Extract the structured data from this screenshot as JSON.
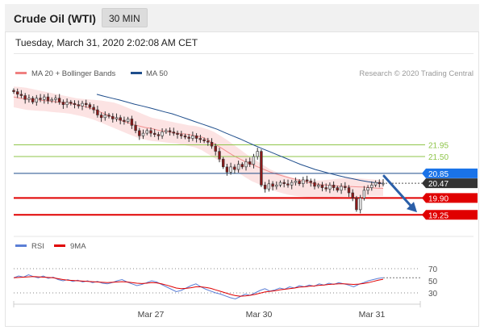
{
  "header": {
    "title": "Crude Oil (WTI)",
    "timeframe": "30 MIN",
    "timestamp": "Tuesday, March 31, 2020 2:02:08 AM CET"
  },
  "colors": {
    "bollinger": "#f08080",
    "ma50": "#1f4e8c",
    "resistance_line": "#8fc54a",
    "support_line": "#e00000",
    "pivot_line": "#1f4e8c",
    "candle_up": "#e8e8e8",
    "candle_down": "#8b1a1a",
    "rsi": "#5b7fd6",
    "rsi_ma": "#e00000",
    "current_price_bg": "#333333",
    "pivot_bg": "#1a73e8",
    "support_bg": "#e00000",
    "arrow": "#2b5fa8"
  },
  "chart_data": [
    {
      "type": "candlestick",
      "instrument": "Crude Oil (WTI)",
      "interval": "30 MIN",
      "legend": [
        {
          "name": "MA 20 + Bollinger Bands",
          "color": "#f08080"
        },
        {
          "name": "MA 50",
          "color": "#1f4e8c"
        }
      ],
      "legend_placement": "top-left",
      "credit": "Research © 2020 Trading Central",
      "x_ticks": [
        "Mar 27",
        "Mar 30",
        "Mar 31"
      ],
      "ylim": [
        18.7,
        24.3
      ],
      "close": [
        24.0,
        23.9,
        23.85,
        23.7,
        23.75,
        23.6,
        23.75,
        23.7,
        23.8,
        23.65,
        23.7,
        23.75,
        23.6,
        23.5,
        23.6,
        23.55,
        23.5,
        23.45,
        23.55,
        23.5,
        23.4,
        23.3,
        23.1,
        23.0,
        23.1,
        23.05,
        22.95,
        23.0,
        22.9,
        22.85,
        22.95,
        22.7,
        22.5,
        22.3,
        22.4,
        22.5,
        22.4,
        22.35,
        22.3,
        22.45,
        22.5,
        22.45,
        22.4,
        22.35,
        22.3,
        22.25,
        22.2,
        22.3,
        22.2,
        22.15,
        22.1,
        22.05,
        21.9,
        21.7,
        21.4,
        21.1,
        20.9,
        21.1,
        21.0,
        21.2,
        21.1,
        21.3,
        21.2,
        21.5,
        21.7,
        20.4,
        20.25,
        20.45,
        20.35,
        20.4,
        20.5,
        20.45,
        20.4,
        20.5,
        20.55,
        20.45,
        20.6,
        20.55,
        20.5,
        20.35,
        20.4,
        20.3,
        20.25,
        20.4,
        20.3,
        20.2,
        20.35,
        20.3,
        20.1,
        19.9,
        19.45,
        19.9,
        20.2,
        20.3,
        20.4,
        20.5,
        20.45,
        20.47
      ],
      "ma20": [
        23.8,
        23.75,
        23.72,
        23.7,
        23.68,
        23.65,
        23.63,
        23.6,
        23.58,
        23.55,
        23.5,
        23.45,
        23.38,
        23.3,
        23.2,
        23.1,
        23.0,
        22.9,
        22.82,
        22.75,
        22.68,
        22.62,
        22.58,
        22.52,
        22.48,
        22.44,
        22.4,
        22.38,
        22.35,
        22.3,
        22.25,
        22.15,
        22.0,
        21.85,
        21.7,
        21.55,
        21.42,
        21.3,
        21.2,
        21.1,
        21.0,
        20.9,
        20.82,
        20.75,
        20.68,
        20.62,
        20.56,
        20.5,
        20.45,
        20.42,
        20.4,
        20.38,
        20.36,
        20.35,
        20.34,
        20.33,
        20.32,
        20.3,
        20.28,
        20.27
      ],
      "ma50": [
        23.9,
        23.82,
        23.75,
        23.68,
        23.6,
        23.52,
        23.45,
        23.38,
        23.3,
        23.22,
        23.15,
        23.05,
        22.95,
        22.85,
        22.75,
        22.65,
        22.55,
        22.42,
        22.3,
        22.18,
        22.05,
        21.92,
        21.8,
        21.68,
        21.56,
        21.44,
        21.32,
        21.2,
        21.1,
        21.0,
        20.92,
        20.84,
        20.77,
        20.7,
        20.64,
        20.58,
        20.53,
        20.49,
        20.46
      ],
      "bands_upper": [
        24.2,
        24.18,
        24.15,
        24.1,
        24.05,
        24.0,
        23.95,
        23.9,
        23.85,
        23.8,
        23.75,
        23.72,
        23.7,
        23.68,
        23.66,
        23.62,
        23.58,
        23.5,
        23.4,
        23.3,
        23.2,
        23.1,
        23.0,
        22.95,
        22.9,
        22.85,
        22.8,
        22.75,
        22.7,
        22.68,
        22.62,
        22.55,
        22.45,
        22.3,
        22.15,
        21.98,
        21.8,
        21.62,
        21.45,
        21.3,
        21.15,
        21.0,
        20.9,
        20.8,
        20.72,
        20.66,
        20.62,
        20.6,
        20.58,
        20.58,
        20.6,
        20.62,
        20.65,
        20.68,
        20.68,
        20.66,
        20.64,
        20.62,
        20.6,
        20.58
      ],
      "bands_lower": [
        23.4,
        23.35,
        23.3,
        23.28,
        23.26,
        23.25,
        23.22,
        23.2,
        23.18,
        23.15,
        23.1,
        23.05,
        22.98,
        22.9,
        22.8,
        22.7,
        22.6,
        22.5,
        22.4,
        22.3,
        22.2,
        22.15,
        22.1,
        22.08,
        22.05,
        22.02,
        22.0,
        21.95,
        21.9,
        21.85,
        21.75,
        21.6,
        21.45,
        21.3,
        21.15,
        21.0,
        20.85,
        20.7,
        20.55,
        20.45,
        20.35,
        20.25,
        20.15,
        20.08,
        20.02,
        19.98,
        19.95,
        19.93,
        19.92,
        19.92,
        19.92,
        19.93,
        19.94,
        19.95,
        19.96,
        19.97,
        19.98,
        19.98,
        19.98,
        19.98
      ],
      "levels": [
        {
          "value": 21.95,
          "label": "21.95",
          "kind": "resistance"
        },
        {
          "value": 21.5,
          "label": "21.50",
          "kind": "resistance"
        },
        {
          "value": 20.85,
          "label": "20.85",
          "kind": "pivot"
        },
        {
          "value": 20.47,
          "label": "20.47",
          "kind": "current"
        },
        {
          "value": 19.9,
          "label": "19.90",
          "kind": "support"
        },
        {
          "value": 19.25,
          "label": "19.25",
          "kind": "support"
        }
      ],
      "projection_arrow": {
        "from": 20.75,
        "to": 19.35,
        "direction": "down"
      }
    },
    {
      "type": "line",
      "legend": [
        {
          "name": "RSI",
          "color": "#5b7fd6"
        },
        {
          "name": "9MA",
          "color": "#e00000"
        }
      ],
      "legend_placement": "top-left",
      "ylim": [
        10,
        90
      ],
      "y_ticks": [
        "70",
        "50",
        "30"
      ],
      "guides": [
        70,
        30
      ],
      "rsi": [
        55,
        58,
        56,
        60,
        57,
        55,
        58,
        54,
        56,
        52,
        50,
        52,
        49,
        51,
        48,
        50,
        47,
        49,
        46,
        45,
        47,
        50,
        52,
        48,
        45,
        42,
        44,
        47,
        50,
        48,
        44,
        40,
        36,
        32,
        34,
        38,
        42,
        45,
        40,
        36,
        33,
        30,
        28,
        25,
        22,
        20,
        24,
        28,
        26,
        30,
        34,
        37,
        33,
        35,
        38,
        36,
        40,
        38,
        42,
        40,
        43,
        41,
        45,
        43,
        46,
        44,
        47,
        45,
        43,
        40,
        44,
        47,
        50,
        52,
        54,
        55
      ],
      "ma9": [
        55,
        55.5,
        56,
        56.5,
        57,
        56.5,
        56,
        55.5,
        55,
        53.5,
        52,
        51,
        50.5,
        50,
        49.5,
        49,
        48.5,
        48,
        47.5,
        47,
        47.5,
        48,
        48.5,
        48,
        47,
        46,
        45.5,
        46,
        47,
        46.5,
        45,
        43,
        40.5,
        38,
        37,
        37.5,
        38.5,
        40,
        40,
        39,
        37.5,
        35,
        32.5,
        30,
        27.5,
        25.5,
        24.5,
        25,
        26,
        27.5,
        29.5,
        31.5,
        32.5,
        33.5,
        35,
        36,
        37,
        38,
        39.5,
        40,
        41,
        41.5,
        42.5,
        43,
        44,
        44.5,
        45,
        45,
        44.5,
        44,
        44.5,
        45.5,
        47,
        49,
        51,
        52.5
      ]
    }
  ]
}
